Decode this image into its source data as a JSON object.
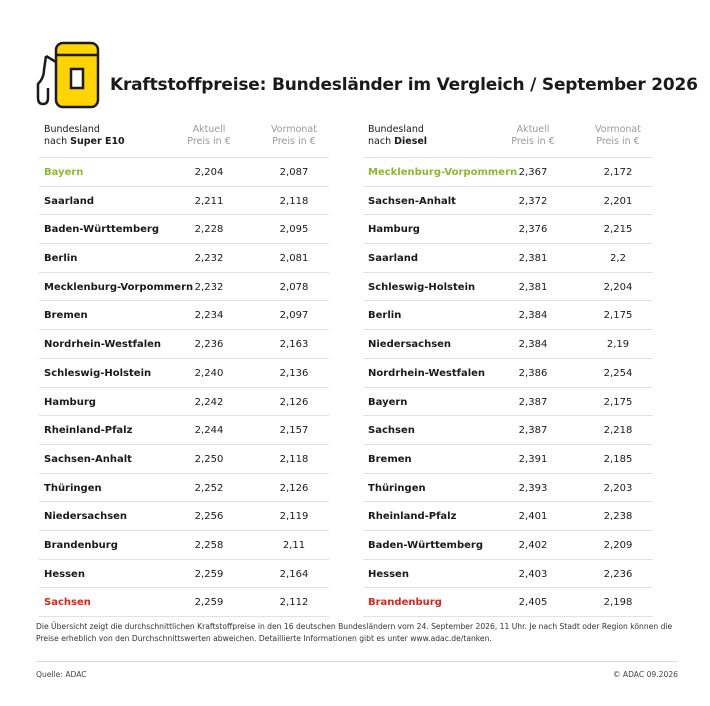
{
  "title": "Kraftstoffpreise: Bundesländer im Vergleich / September 2026",
  "colors": {
    "pump": "#ffd400",
    "pump_outline": "#1a1a1a",
    "best": "#8fb82f",
    "worst": "#d9261c"
  },
  "left": {
    "header": {
      "col1_line1": "Bundesland",
      "col1_line2_prefix": "nach ",
      "col1_line2_bold": "Super E10",
      "col2_line1": "Aktuell",
      "col2_line2": "Preis in €",
      "col3_line1": "Vormonat",
      "col3_line2": "Preis in €"
    },
    "rows": [
      {
        "name": "Bayern",
        "current": "2,204",
        "previous": "2,087"
      },
      {
        "name": "Saarland",
        "current": "2,211",
        "previous": "2,118"
      },
      {
        "name": "Baden-Württemberg",
        "current": "2,228",
        "previous": "2,095"
      },
      {
        "name": "Berlin",
        "current": "2,232",
        "previous": "2,081"
      },
      {
        "name": "Mecklenburg-Vorpommern",
        "current": "2,232",
        "previous": "2,078"
      },
      {
        "name": "Bremen",
        "current": "2,234",
        "previous": "2,097"
      },
      {
        "name": "Nordrhein-Westfalen",
        "current": "2,236",
        "previous": "2,163"
      },
      {
        "name": "Schleswig-Holstein",
        "current": "2,240",
        "previous": "2,136"
      },
      {
        "name": "Hamburg",
        "current": "2,242",
        "previous": "2,126"
      },
      {
        "name": "Rheinland-Pfalz",
        "current": "2,244",
        "previous": "2,157"
      },
      {
        "name": "Sachsen-Anhalt",
        "current": "2,250",
        "previous": "2,118"
      },
      {
        "name": "Thüringen",
        "current": "2,252",
        "previous": "2,126"
      },
      {
        "name": "Niedersachsen",
        "current": "2,256",
        "previous": "2,119"
      },
      {
        "name": "Brandenburg",
        "current": "2,258",
        "previous": "2,11"
      },
      {
        "name": "Hessen",
        "current": "2,259",
        "previous": "2,164"
      },
      {
        "name": "Sachsen",
        "current": "2,259",
        "previous": "2,112"
      }
    ]
  },
  "right": {
    "header": {
      "col1_line1": "Bundesland",
      "col1_line2_prefix": "nach ",
      "col1_line2_bold": "Diesel",
      "col2_line1": "Aktuell",
      "col2_line2": "Preis in €",
      "col3_line1": "Vormonat",
      "col3_line2": "Preis in €"
    },
    "rows": [
      {
        "name": "Mecklenburg-Vorpommern",
        "current": "2,367",
        "previous": "2,172"
      },
      {
        "name": "Sachsen-Anhalt",
        "current": "2,372",
        "previous": "2,201"
      },
      {
        "name": "Hamburg",
        "current": "2,376",
        "previous": "2,215"
      },
      {
        "name": "Saarland",
        "current": "2,381",
        "previous": "2,2"
      },
      {
        "name": "Schleswig-Holstein",
        "current": "2,381",
        "previous": "2,204"
      },
      {
        "name": "Berlin",
        "current": "2,384",
        "previous": "2,175"
      },
      {
        "name": "Niedersachsen",
        "current": "2,384",
        "previous": "2,19"
      },
      {
        "name": "Nordrhein-Westfalen",
        "current": "2,386",
        "previous": "2,254"
      },
      {
        "name": "Bayern",
        "current": "2,387",
        "previous": "2,175"
      },
      {
        "name": "Sachsen",
        "current": "2,387",
        "previous": "2,218"
      },
      {
        "name": "Bremen",
        "current": "2,391",
        "previous": "2,185"
      },
      {
        "name": "Thüringen",
        "current": "2,393",
        "previous": "2,203"
      },
      {
        "name": "Rheinland-Pfalz",
        "current": "2,401",
        "previous": "2,238"
      },
      {
        "name": "Baden-Württemberg",
        "current": "2,402",
        "previous": "2,209"
      },
      {
        "name": "Hessen",
        "current": "2,403",
        "previous": "2,236"
      },
      {
        "name": "Brandenburg",
        "current": "2,405",
        "previous": "2,198"
      }
    ]
  },
  "note": "Die Übersicht zeigt die durchschnittlichen Kraftstoffpreise in den 16 deutschen Bundesländern vom 24. September 2026, 11 Uhr. Je nach Stadt oder Region können die Preise erheblich von den Durchschnittswerten abweichen. Detaillierte Informationen gibt es unter www.adac.de/tanken.",
  "source": "Quelle: ADAC",
  "copyright": "© ADAC 09.2026"
}
